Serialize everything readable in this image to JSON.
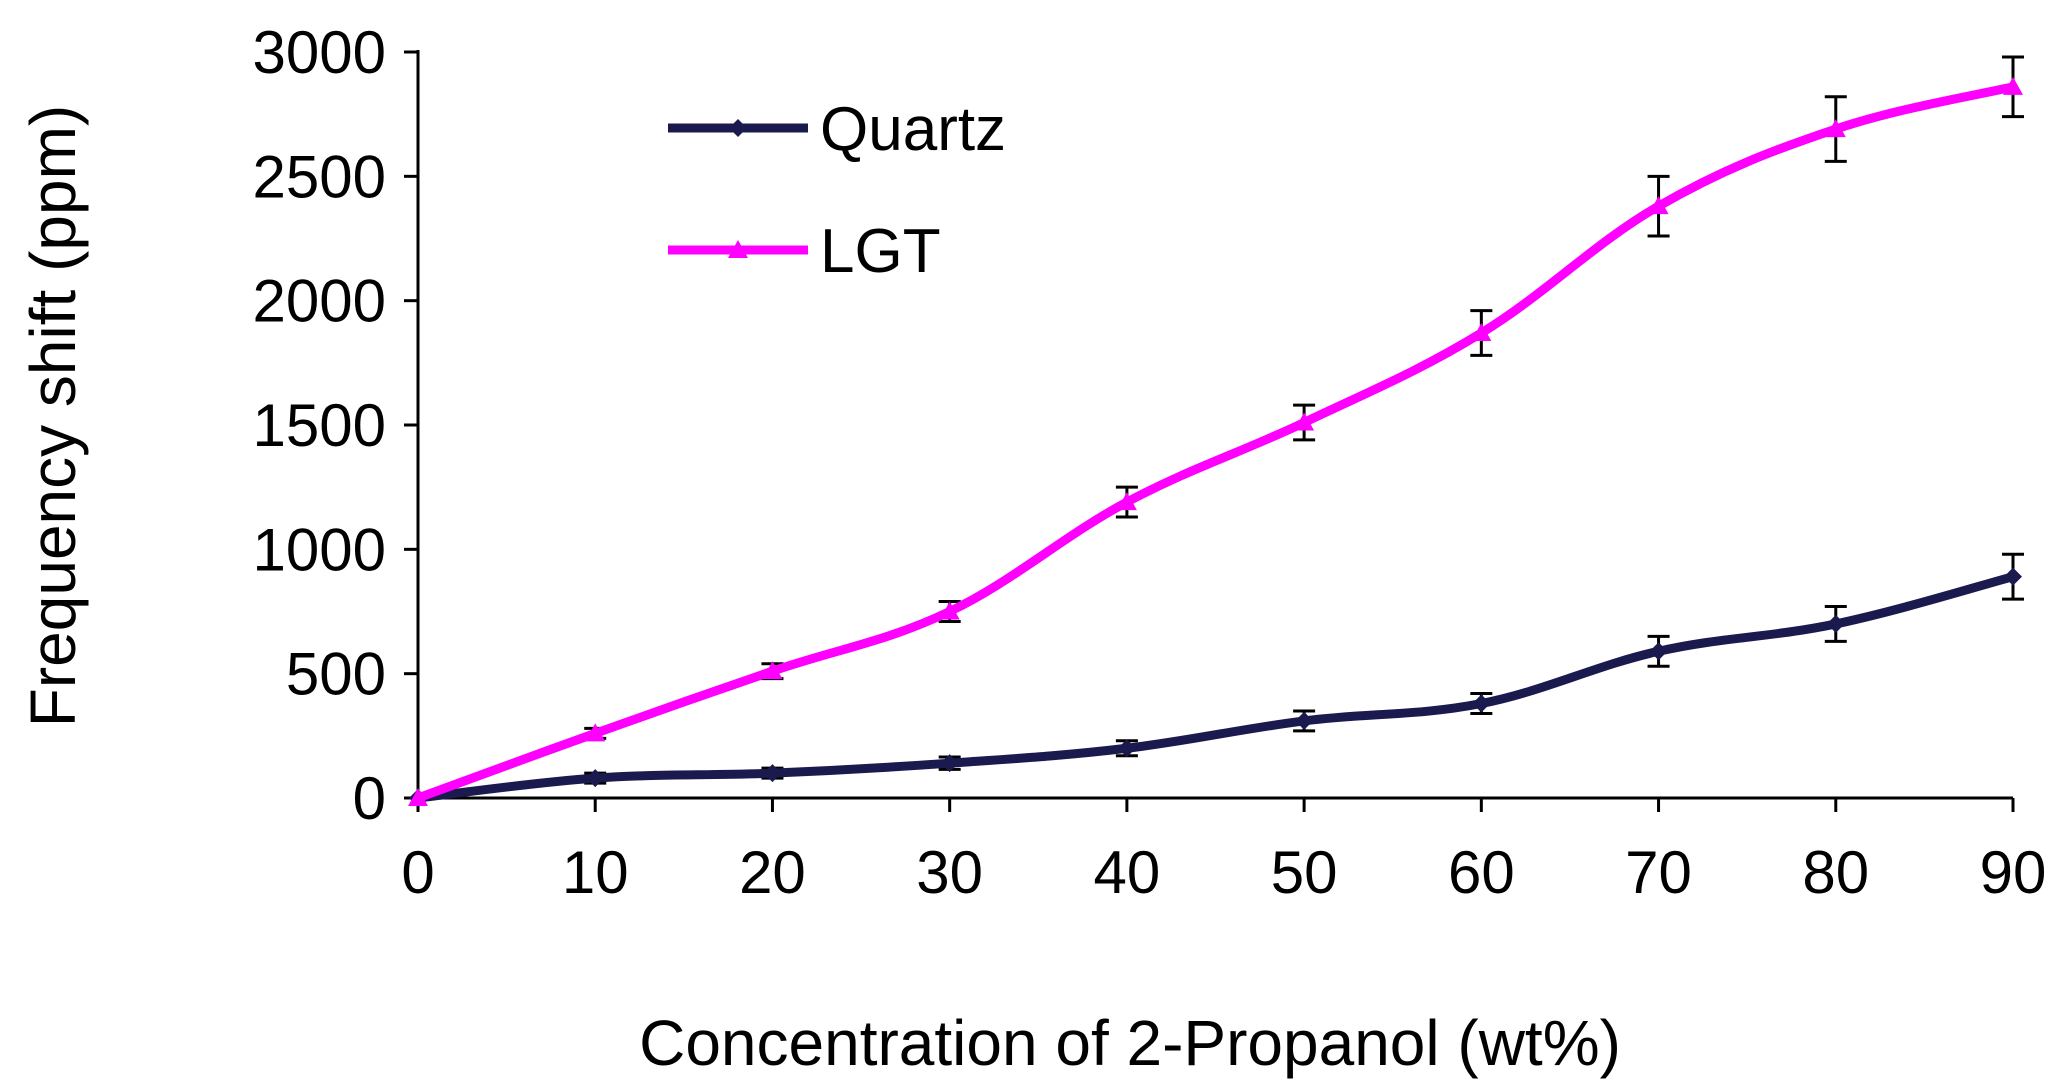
{
  "chart_data": {
    "type": "line",
    "title": "",
    "xlabel": "Concentration of 2-Propanol (wt%)",
    "ylabel": "Frequency shift (ppm)",
    "x": [
      0,
      10,
      20,
      30,
      40,
      50,
      60,
      70,
      80,
      90
    ],
    "xlim": [
      0,
      90
    ],
    "ylim": [
      0,
      3000
    ],
    "xticks": [
      "0",
      "10",
      "20",
      "30",
      "40",
      "50",
      "60",
      "70",
      "80",
      "90"
    ],
    "yticks": [
      "0",
      "500",
      "1000",
      "1500",
      "2000",
      "2500",
      "3000"
    ],
    "grid": false,
    "legend_position": "top-left",
    "series": [
      {
        "name": "Quartz",
        "color": "#1a1a4e",
        "marker": "diamond",
        "values": [
          0,
          80,
          100,
          140,
          200,
          310,
          380,
          590,
          700,
          890
        ],
        "errors": [
          0,
          20,
          20,
          25,
          30,
          40,
          40,
          60,
          70,
          90
        ]
      },
      {
        "name": "LGT",
        "color": "#ff00ff",
        "marker": "triangle",
        "values": [
          0,
          260,
          510,
          750,
          1190,
          1510,
          1870,
          2380,
          2690,
          2860
        ],
        "errors": [
          0,
          20,
          30,
          40,
          60,
          70,
          90,
          120,
          130,
          120
        ]
      }
    ]
  }
}
